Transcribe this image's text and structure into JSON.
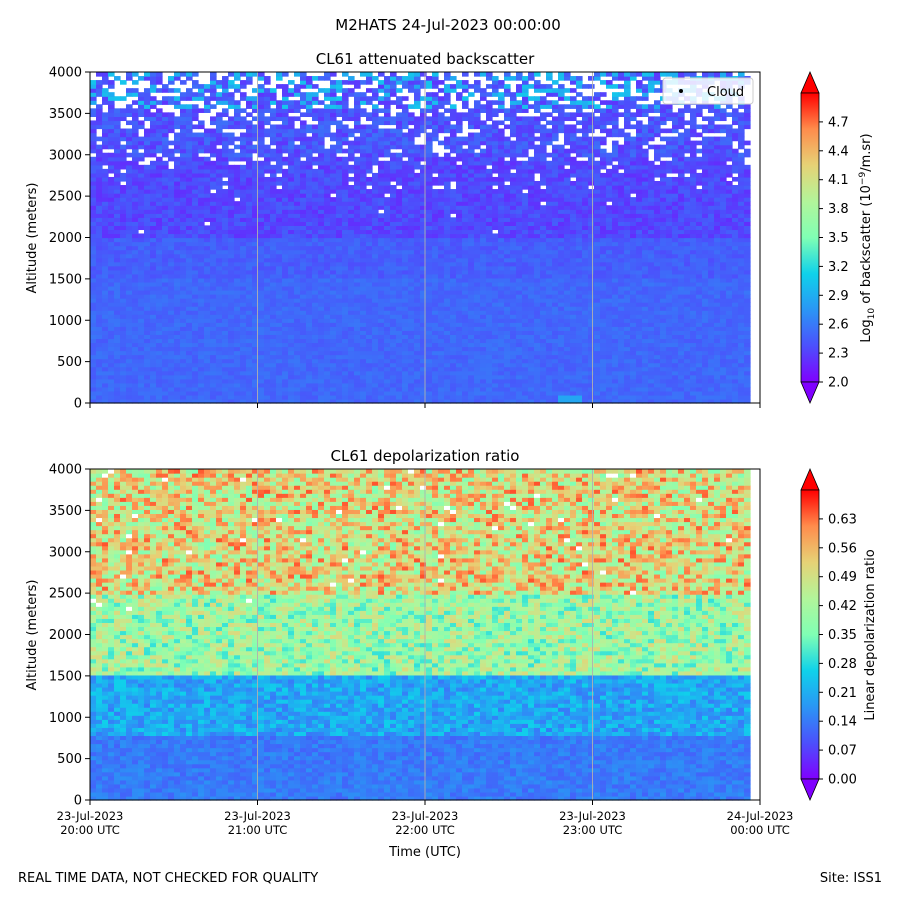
{
  "suptitle": "M2HATS 24-Jul-2023 00:00:00",
  "footer_left": "REAL TIME DATA, NOT CHECKED FOR QUALITY",
  "footer_right": "Site: ISS1",
  "xlabel": "Time (UTC)",
  "x_ticks": [
    {
      "line1": "23-Jul-2023",
      "line2": "20:00 UTC"
    },
    {
      "line1": "23-Jul-2023",
      "line2": "21:00 UTC"
    },
    {
      "line1": "23-Jul-2023",
      "line2": "22:00 UTC"
    },
    {
      "line1": "23-Jul-2023",
      "line2": "23:00 UTC"
    },
    {
      "line1": "24-Jul-2023",
      "line2": "00:00 UTC"
    }
  ],
  "chart_data": [
    {
      "type": "heatmap",
      "title": "CL61 attenuated backscatter",
      "ylabel": "Altitude (meters)",
      "xlim_hours": [
        20,
        24
      ],
      "ylim": [
        0,
        4000
      ],
      "y_ticks": [
        0,
        500,
        1000,
        1500,
        2000,
        2500,
        3000,
        3500,
        4000
      ],
      "grid": "vertical",
      "legend": {
        "label": "Cloud",
        "placement": "top-right"
      },
      "colorbar": {
        "label": "Log10 of backscatter (10^-9/m.sr)",
        "range": [
          2.0,
          5.0
        ],
        "ticks": [
          "2.0",
          "2.3",
          "2.6",
          "2.9",
          "3.2",
          "3.5",
          "3.8",
          "4.1",
          "4.4",
          "4.7"
        ],
        "colormap": "rainbow",
        "extend": "both"
      },
      "data_summary": {
        "surface_layer_0_1500m": 2.5,
        "layer_1500_2300m": 2.45,
        "layer_2300_3000m": 2.35,
        "aloft_3000_4000m": 2.4,
        "gaps_above_m": 2500
      }
    },
    {
      "type": "heatmap",
      "title": "CL61 depolarization ratio",
      "ylabel": "Altitude (meters)",
      "xlim_hours": [
        20,
        24
      ],
      "ylim": [
        0,
        4000
      ],
      "y_ticks": [
        0,
        500,
        1000,
        1500,
        2000,
        2500,
        3000,
        3500,
        4000
      ],
      "grid": "vertical",
      "colorbar": {
        "label": "Linear depolarization ratio",
        "range": [
          0.0,
          0.7
        ],
        "ticks": [
          "0.00",
          "0.07",
          "0.14",
          "0.21",
          "0.28",
          "0.35",
          "0.42",
          "0.49",
          "0.56",
          "0.63"
        ],
        "colormap": "rainbow",
        "extend": "both"
      },
      "data_summary": {
        "surface_layer_0_800m": 0.15,
        "layer_800_1500m": 0.22,
        "layer_1500_2500m": 0.42,
        "aloft_2500_4000m": 0.5
      }
    }
  ]
}
